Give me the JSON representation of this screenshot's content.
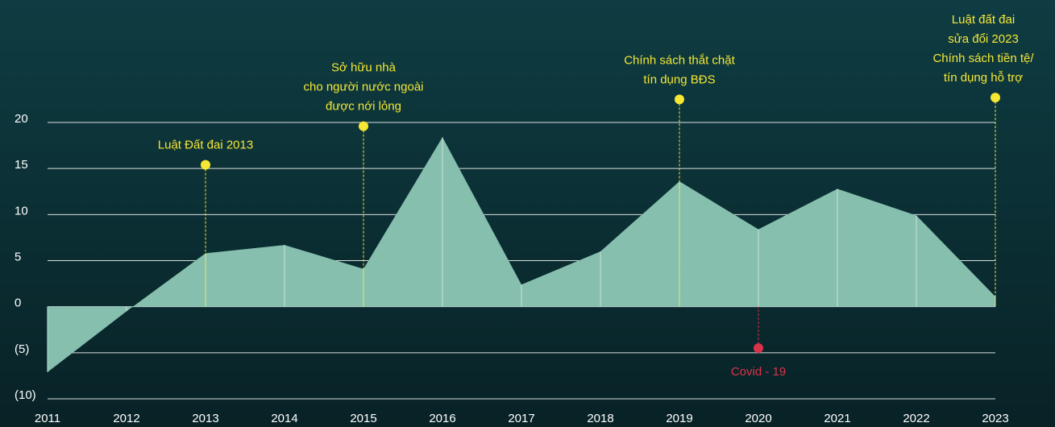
{
  "chart_data": {
    "type": "area",
    "x": [
      2011,
      2012,
      2013,
      2014,
      2015,
      2016,
      2017,
      2018,
      2019,
      2020,
      2021,
      2022,
      2023
    ],
    "values": [
      -7.1,
      -0.5,
      5.8,
      6.7,
      4.1,
      18.4,
      2.4,
      6.0,
      13.6,
      8.4,
      12.8,
      9.9,
      1.1
    ],
    "color": "#86bfae",
    "xlim": [
      2011,
      2023
    ],
    "xticks": [
      2011,
      2012,
      2013,
      2014,
      2015,
      2016,
      2017,
      2018,
      2019,
      2020,
      2021,
      2022,
      2023
    ],
    "ylim": [
      -10,
      20
    ],
    "yticks": [
      20,
      15,
      10,
      5,
      0,
      {
        "value": -5,
        "label": "(5)"
      },
      {
        "value": -10,
        "label": "(10)"
      }
    ],
    "grid": true,
    "annotations": [
      {
        "x": 2013,
        "y": 15.4,
        "lines": [
          "Luật Đất đai 2013"
        ],
        "color": "#f5e733",
        "label_position": "above"
      },
      {
        "x": 2015,
        "y": 19.6,
        "lines": [
          "Sở hữu nhà",
          "cho người nước ngoài",
          "được nới lỏng"
        ],
        "color": "#f5e733",
        "label_position": "above"
      },
      {
        "x": 2019,
        "y": 22.5,
        "lines": [
          "Chính sách thắt chặt",
          "tín dụng BĐS"
        ],
        "color": "#f5e733",
        "label_position": "above"
      },
      {
        "x": 2023,
        "y": 22.7,
        "lines": [
          "Luật đất đai",
          "sửa đổi 2023",
          "Chính sách tiền tệ/",
          "tín dụng hỗ trợ"
        ],
        "color": "#f5e733",
        "label_position": "above"
      },
      {
        "x": 2020,
        "y": -4.5,
        "lines": [
          "Covid - 19"
        ],
        "color": "#d9334a",
        "label_position": "below"
      }
    ]
  }
}
